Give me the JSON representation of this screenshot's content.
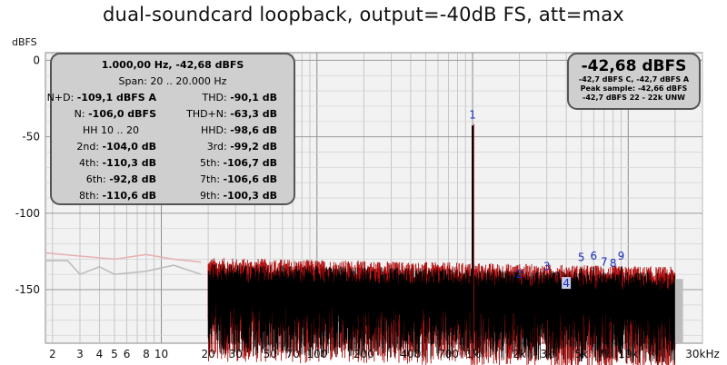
{
  "title": "dual-soundcard loopback, output=-40dB FS, att=max",
  "y_unit": "dBFS",
  "stats": {
    "header": "1.000,00 Hz, -42,68 dBFS",
    "span": "Span: 20 .. 20.000 Hz",
    "rows": [
      {
        "l_label": "N+D:",
        "l_val": "-109,1 dBFS A",
        "r_label": "THD:",
        "r_val": "-90,1 dB"
      },
      {
        "l_label": "N:",
        "l_val": "-106,0 dBFS",
        "r_label": "THD+N:",
        "r_val": "-63,3 dB"
      },
      {
        "l_label": "HH 10 .. 20",
        "l_val": "",
        "r_label": "HHD:",
        "r_val": "-98,6 dB"
      },
      {
        "l_label": "2nd:",
        "l_val": "-104,0 dB",
        "r_label": "3rd:",
        "r_val": "-99,2 dB"
      },
      {
        "l_label": "4th:",
        "l_val": "-110,3 dB",
        "r_label": "5th:",
        "r_val": "-106,7 dB"
      },
      {
        "l_label": "6th:",
        "l_val": "-92,8 dB",
        "r_label": "7th:",
        "r_val": "-106,6 dB"
      },
      {
        "l_label": "8th:",
        "l_val": "-110,6 dB",
        "r_label": "9th:",
        "r_val": "-100,3 dB"
      }
    ]
  },
  "level": {
    "main": "-42,68 dBFS",
    "line1": "-42,7 dBFS C, -42,7 dBFS A",
    "line2": "Peak sample: -42,66 dBFS",
    "line3": "-42,7 dBFS 22 - 22k UNW"
  },
  "colors": {
    "trace_red": "#b01010",
    "trace_black": "#000000",
    "trace_gray": "#bdbdbd",
    "trace_pink": "#e6b3b3",
    "harmonic_label": "#1a2fb8",
    "plot_bg": "#f2f2f2"
  },
  "chart_data": {
    "type": "line",
    "title": "dual-soundcard loopback, output=-40dB FS, att=max",
    "xlabel": "",
    "ylabel": "dBFS",
    "x_scale": "log",
    "xlim": [
      1.8,
      30000
    ],
    "ylim": [
      -185,
      5
    ],
    "x_ticks": [
      2,
      3,
      4,
      5,
      6,
      8,
      10,
      20,
      30,
      50,
      70,
      100,
      200,
      400,
      700,
      1000,
      2000,
      3000,
      5000,
      7000,
      10000,
      30000
    ],
    "x_tick_labels": [
      "2",
      "3",
      "4",
      "5",
      "6",
      "8",
      "10",
      "20",
      "30",
      "50",
      "70",
      "100",
      "200",
      "400",
      "700",
      "1k",
      "2k",
      "3k",
      "5k",
      "7k",
      "10k",
      "30kHz"
    ],
    "y_ticks": [
      0,
      -50,
      -100,
      -150
    ],
    "y_tick_labels": [
      "0",
      "-50",
      "-100",
      "-150"
    ],
    "grid": true,
    "fundamental": {
      "x": 1000,
      "y": -42.68
    },
    "harmonics": [
      {
        "label": "1",
        "x": 1000,
        "y": -42.7
      },
      {
        "label": "2",
        "x": 2000,
        "y": -147
      },
      {
        "label": "3",
        "x": 3000,
        "y": -142
      },
      {
        "label": "4",
        "x": 4000,
        "y": -153
      },
      {
        "label": "5",
        "x": 5000,
        "y": -136
      },
      {
        "label": "6",
        "x": 6000,
        "y": -135
      },
      {
        "label": "7",
        "x": 7000,
        "y": -139
      },
      {
        "label": "8",
        "x": 8000,
        "y": -140
      },
      {
        "label": "9",
        "x": 9000,
        "y": -135
      }
    ],
    "series": [
      {
        "noise_floor_db": -141,
        "band_hz": [
          20,
          20000
        ]
      },
      {
        "noise_floor_db": -145,
        "band_hz": [
          20,
          20000
        ]
      },
      {
        "curve": [
          [
            1.8,
            -131
          ],
          [
            2.5,
            -131
          ],
          [
            3,
            -140
          ],
          [
            4,
            -135
          ],
          [
            5,
            -140
          ],
          [
            8,
            -138
          ],
          [
            12,
            -134
          ],
          [
            18,
            -140
          ]
        ]
      },
      {
        "curve": [
          [
            1.8,
            -126
          ],
          [
            3,
            -128
          ],
          [
            5,
            -130
          ],
          [
            8,
            -127
          ],
          [
            12,
            -130
          ],
          [
            18,
            -132
          ]
        ]
      }
    ]
  }
}
